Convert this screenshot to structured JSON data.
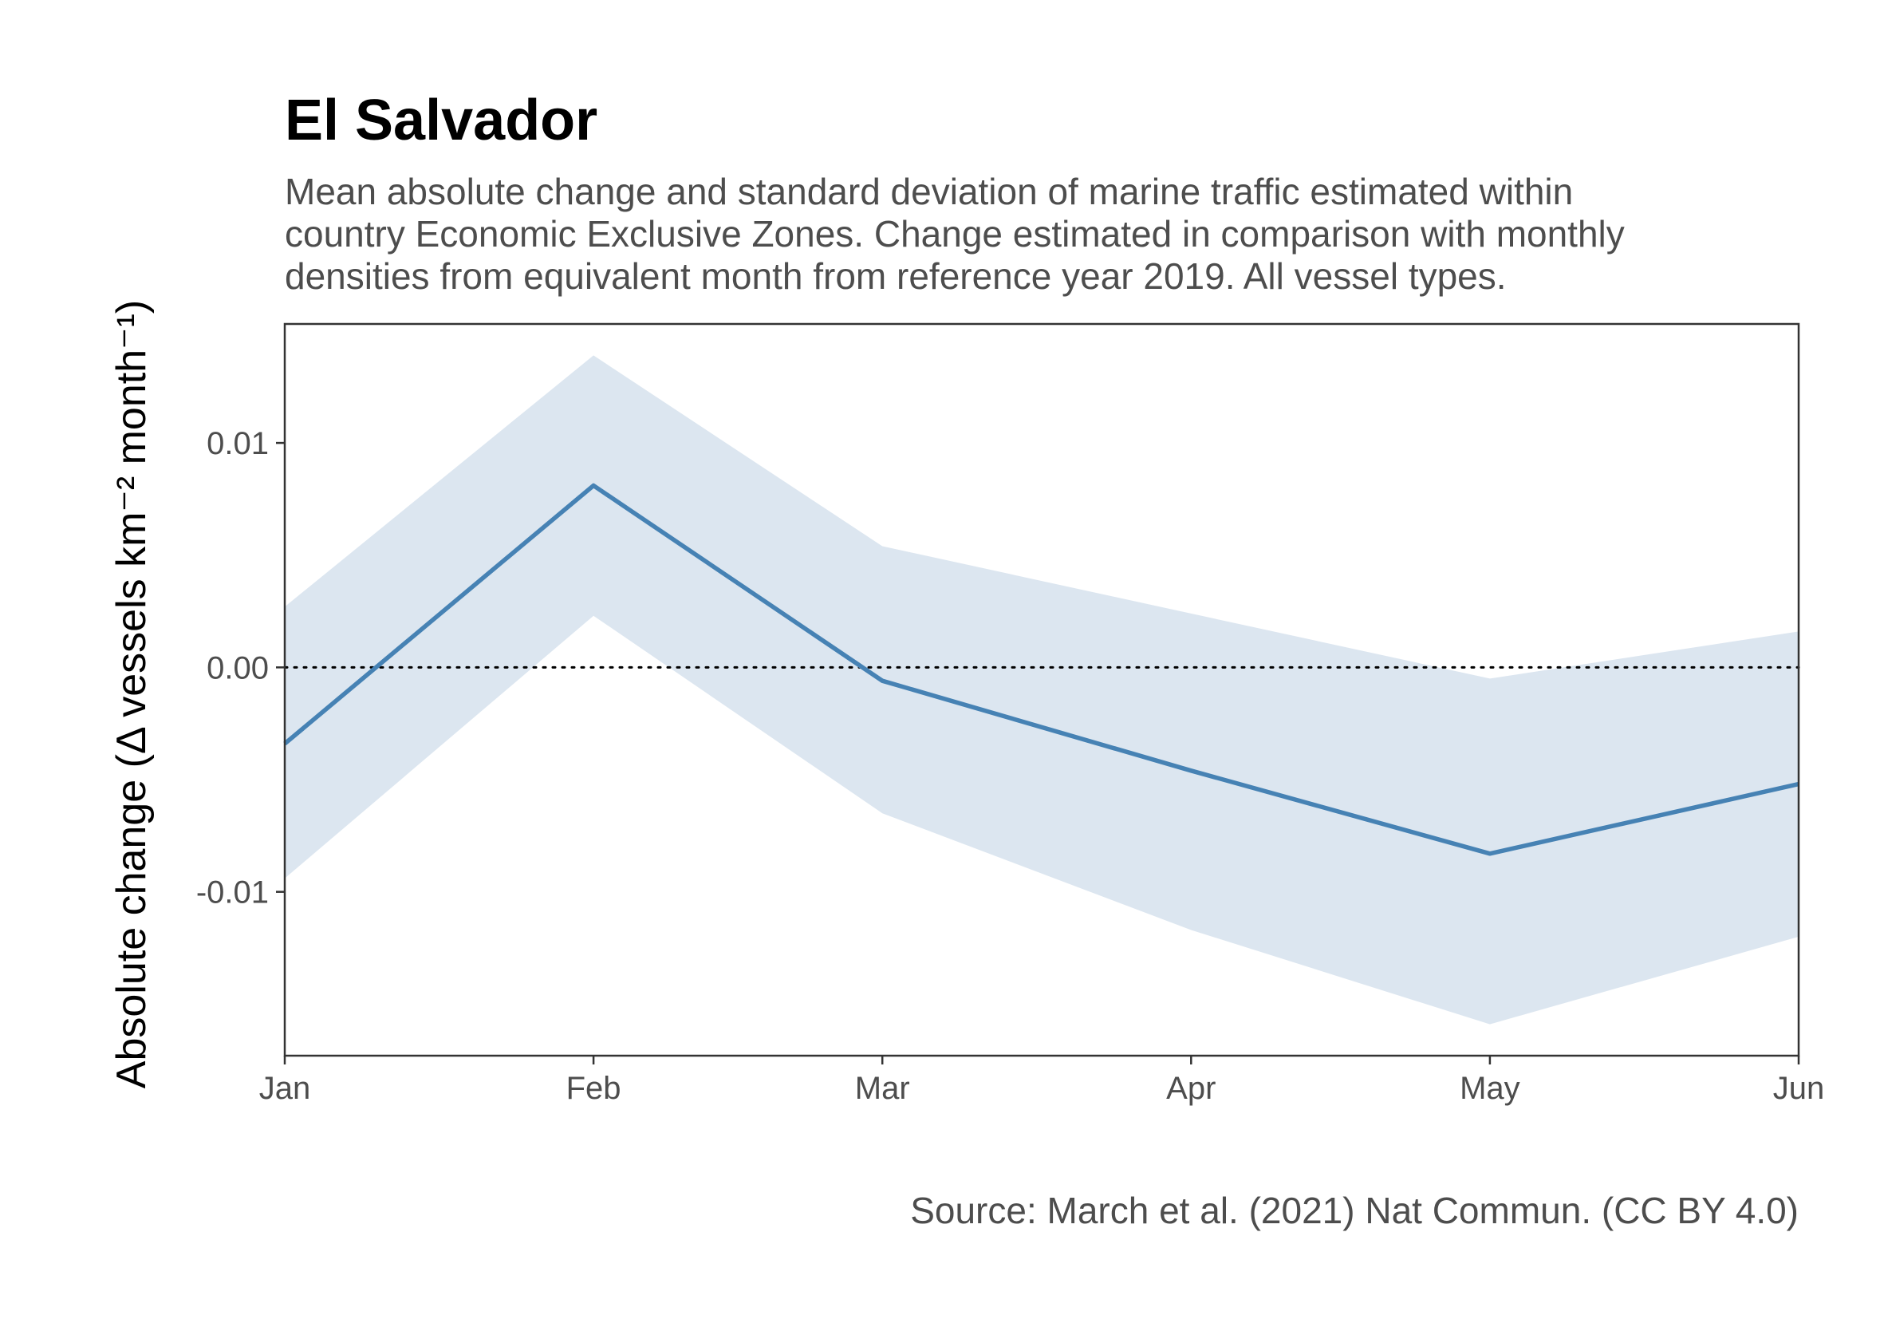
{
  "chart_data": {
    "type": "line",
    "title": "El Salvador",
    "subtitle_lines": [
      "Mean absolute change and standard deviation of marine traffic estimated within",
      "country Economic Exclusive Zones. Change estimated in comparison with monthly",
      "densities from equivalent month from reference year 2019. All vessel types."
    ],
    "ylabel": "Absolute change (Δ vessels km⁻² month⁻¹)",
    "xlabel": "",
    "caption": "Source: March et al. (2021) Nat Commun. (CC BY 4.0)",
    "x": [
      "Jan",
      "Feb",
      "Mar",
      "Apr",
      "May",
      "Jun"
    ],
    "x_days": [
      1,
      32,
      61,
      92,
      122,
      153
    ],
    "series": [
      {
        "values": [
          -0.0034,
          0.0081,
          -0.0006,
          -0.0046,
          -0.0083,
          -0.0052
        ],
        "sd_lower": [
          -0.0094,
          0.0023,
          -0.0065,
          -0.0117,
          -0.0159,
          -0.012
        ],
        "sd_upper": [
          0.0027,
          0.0139,
          0.0054,
          0.0024,
          -0.0005,
          0.0016
        ]
      }
    ],
    "yticks": [
      0.01,
      0.0,
      -0.01
    ],
    "ytick_labels": [
      "0.01",
      "0.00",
      "-0.01"
    ],
    "ylim": [
      -0.0173,
      0.0153
    ],
    "xlim": [
      1,
      153
    ],
    "reference_line": {
      "y": 0.0,
      "style": "dotted"
    },
    "grid": false,
    "legend": "none",
    "colors": {
      "line": "#4682b4",
      "ribbon": "#dce6f0",
      "panel_border": "#333333",
      "reference": "#000000"
    }
  }
}
